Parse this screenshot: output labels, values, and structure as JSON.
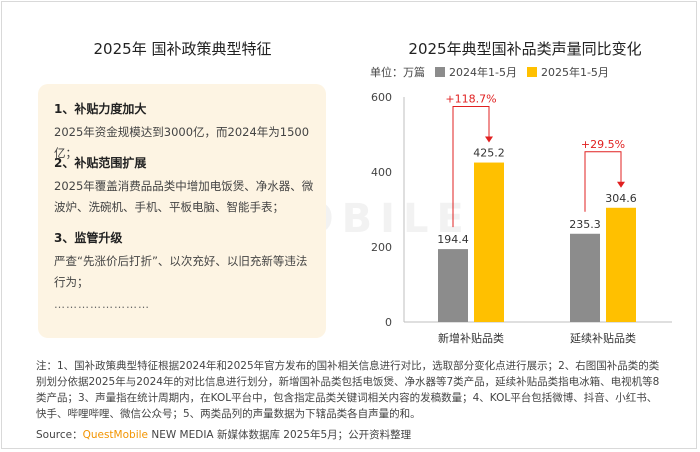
{
  "left_title": "2025年 国补政策典型特征",
  "policy": {
    "items": [
      {
        "heading": "1、补贴力度加大",
        "text": "2025年资金规模达到3000亿，而2024年为1500亿；"
      },
      {
        "heading": "2、补贴范围扩展",
        "text": "2025年覆盖消费品品类中增加电饭煲、净水器、微波炉、洗碗机、手机、平板电脑、智能手表；"
      },
      {
        "heading": "3、监管升级",
        "text": "严查“先涨价后打折”、以次充好、以旧充新等违法行为；"
      }
    ],
    "ellipsis": "……………………"
  },
  "legend": {
    "unit": "单位：万篇",
    "items": [
      {
        "label": "2024年1-5月",
        "color": "#8c8c8c"
      },
      {
        "label": "2025年1-5月",
        "color": "#ffc000"
      }
    ]
  },
  "watermark": "QUEST MOBILE",
  "chart_data": {
    "type": "bar",
    "title": "2025年典型国补品类声量同比变化",
    "categories": [
      "新增补贴品类",
      "延续补贴品类"
    ],
    "series": [
      {
        "name": "2024年1-5月",
        "values": [
          194.4,
          235.3
        ],
        "color": "#8c8c8c"
      },
      {
        "name": "2025年1-5月",
        "values": [
          425.2,
          304.6
        ],
        "color": "#ffc000"
      }
    ],
    "growth_labels": [
      "+118.7%",
      "+29.5%"
    ],
    "growth_color": "#e02020",
    "yticks": [
      0,
      200,
      400,
      600
    ],
    "ylim": [
      0,
      600
    ],
    "grid": false
  },
  "note": "注：1、国补政策典型特征根据2024年和2025年官方发布的国补相关信息进行对比，选取部分变化点进行展示；2、右图国补品类的类别划分依据2025年与2024年的对比信息进行划分，新增国补品类包括电饭煲、净水器等7类产品，延续补贴品类指电冰箱、电视机等8类产品；3、声量指在统计周期内，在KOL平台中，包含指定品类关键词相关内容的发稿数量；4、KOL平台包括微博、抖音、小红书、快手、哔哩哔哩、微信公众号；5、两类品列的声量数据为下辖品类各自声量的和。",
  "source": {
    "prefix": "Source：",
    "brand": "QuestMobile",
    "rest": " NEW MEDIA 新媒体数据库 2025年5月；公开资料整理"
  }
}
